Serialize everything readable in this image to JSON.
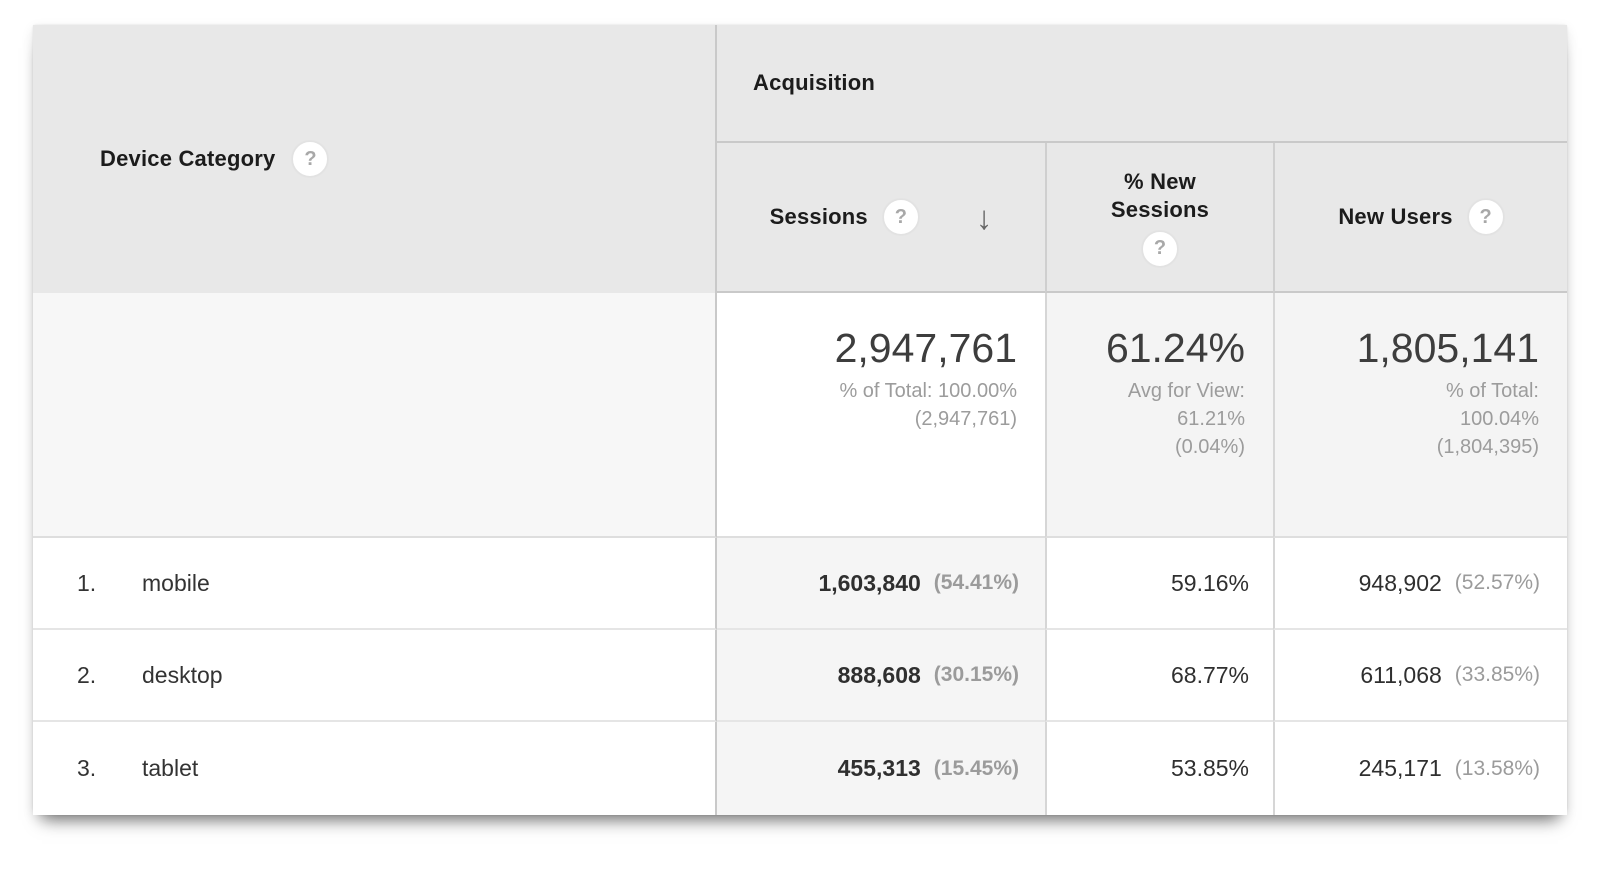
{
  "header": {
    "device_category": "Device Category",
    "acquisition": "Acquisition"
  },
  "columns": {
    "sessions": "Sessions",
    "new_sessions": "% New Sessions",
    "new_users": "New Users"
  },
  "icons": {
    "help": "?",
    "sort_desc": "↓"
  },
  "sort": {
    "column": "Sessions",
    "direction": "descending"
  },
  "summary": {
    "sessions": {
      "value": "2,947,761",
      "line1": "% of Total: 100.00%",
      "line2": "(2,947,761)"
    },
    "new_sessions": {
      "value": "61.24%",
      "line1": "Avg for View:",
      "line2": "61.21%",
      "line3": "(0.04%)"
    },
    "new_users": {
      "value": "1,805,141",
      "line1": "% of Total:",
      "line2": "100.04%",
      "line3": "(1,804,395)"
    }
  },
  "rows": [
    {
      "index": "1.",
      "device": "mobile",
      "sessions": "1,603,840",
      "sessions_pct": "(54.41%)",
      "new_sessions": "59.16%",
      "new_users": "948,902",
      "new_users_pct": "(52.57%)"
    },
    {
      "index": "2.",
      "device": "desktop",
      "sessions": "888,608",
      "sessions_pct": "(30.15%)",
      "new_sessions": "68.77%",
      "new_users": "611,068",
      "new_users_pct": "(33.85%)"
    },
    {
      "index": "3.",
      "device": "tablet",
      "sessions": "455,313",
      "sessions_pct": "(15.45%)",
      "new_sessions": "53.85%",
      "new_users": "245,171",
      "new_users_pct": "(13.58%)"
    }
  ],
  "colors": {
    "header_bg": "#e8e8e8",
    "sorted_column_bg": "#f5f5f5",
    "summary_metric_bg": "#f4f4f4",
    "divider_strong": "#c9c9c9",
    "divider_light": "#e5e5e5",
    "text_dark": "#2f2f2f",
    "text_muted": "#9b9b9b"
  }
}
